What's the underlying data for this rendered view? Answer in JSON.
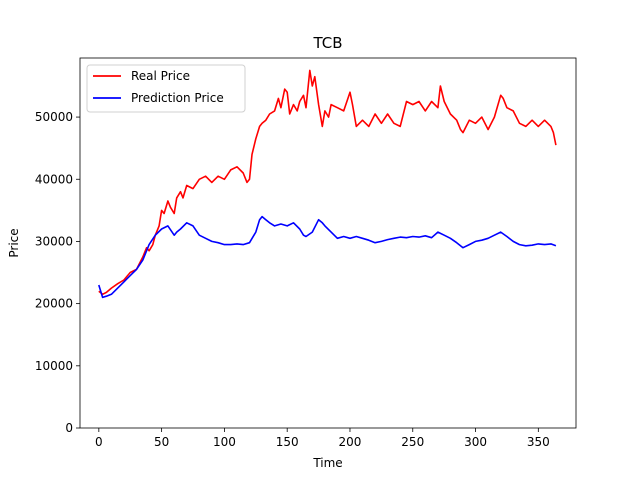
{
  "chart_data": {
    "type": "line",
    "title": "TCB",
    "xlabel": "Time",
    "ylabel": "Price",
    "xlim": [
      -15,
      380
    ],
    "ylim": [
      0,
      59500
    ],
    "xticks": [
      0,
      50,
      100,
      150,
      200,
      250,
      300,
      350
    ],
    "yticks": [
      0,
      10000,
      20000,
      30000,
      40000,
      50000
    ],
    "grid": false,
    "legend": "top-left",
    "series": [
      {
        "name": "Real Price",
        "color": "#ff0000",
        "x": [
          0,
          3,
          6,
          10,
          15,
          20,
          25,
          30,
          35,
          38,
          40,
          43,
          45,
          48,
          50,
          52,
          55,
          57,
          60,
          62,
          65,
          67,
          70,
          75,
          80,
          85,
          90,
          95,
          100,
          105,
          110,
          115,
          118,
          120,
          122,
          125,
          128,
          130,
          133,
          136,
          140,
          143,
          145,
          148,
          150,
          152,
          155,
          158,
          160,
          163,
          165,
          168,
          170,
          172,
          175,
          178,
          180,
          183,
          185,
          190,
          195,
          200,
          202,
          205,
          210,
          215,
          220,
          225,
          230,
          235,
          240,
          245,
          250,
          255,
          260,
          265,
          270,
          272,
          275,
          280,
          285,
          288,
          290,
          295,
          300,
          305,
          310,
          315,
          320,
          322,
          325,
          330,
          335,
          340,
          345,
          350,
          355,
          360,
          362,
          364
        ],
        "y": [
          22000,
          21500,
          21800,
          22500,
          23200,
          23800,
          25000,
          25500,
          27500,
          29000,
          28500,
          29500,
          31000,
          32500,
          35000,
          34500,
          36500,
          35500,
          34500,
          37000,
          38000,
          37000,
          39000,
          38500,
          40000,
          40500,
          39500,
          40500,
          40000,
          41500,
          42000,
          41000,
          39500,
          40000,
          44000,
          46500,
          48500,
          49000,
          49500,
          50500,
          51000,
          53000,
          51500,
          54500,
          54000,
          50500,
          52000,
          51000,
          52500,
          53500,
          51500,
          57500,
          55000,
          56500,
          52000,
          48500,
          51000,
          50000,
          52000,
          51500,
          51000,
          54000,
          52000,
          48500,
          49500,
          48500,
          50500,
          49000,
          50500,
          49000,
          48500,
          52500,
          52000,
          52500,
          51000,
          52500,
          51500,
          55000,
          52500,
          50500,
          49500,
          48000,
          47500,
          49500,
          49000,
          50000,
          48000,
          50000,
          53500,
          53000,
          51500,
          51000,
          49000,
          48500,
          49500,
          48500,
          49500,
          48500,
          47500,
          45500
        ]
      },
      {
        "name": "Prediction Price",
        "color": "#0000ff",
        "x": [
          0,
          3,
          6,
          10,
          15,
          20,
          25,
          30,
          35,
          40,
          45,
          50,
          55,
          60,
          62,
          65,
          70,
          75,
          80,
          85,
          90,
          95,
          100,
          105,
          110,
          115,
          120,
          125,
          128,
          130,
          133,
          136,
          140,
          145,
          150,
          155,
          160,
          163,
          165,
          170,
          175,
          178,
          180,
          185,
          190,
          195,
          200,
          205,
          210,
          215,
          220,
          225,
          230,
          235,
          240,
          245,
          250,
          255,
          260,
          265,
          270,
          275,
          280,
          285,
          290,
          295,
          300,
          305,
          310,
          315,
          320,
          325,
          330,
          335,
          340,
          345,
          350,
          355,
          360,
          364
        ],
        "y": [
          23000,
          21000,
          21200,
          21500,
          22500,
          23500,
          24500,
          25500,
          27000,
          29500,
          31000,
          32000,
          32500,
          31000,
          31500,
          32000,
          33000,
          32500,
          31000,
          30500,
          30000,
          29800,
          29500,
          29500,
          29600,
          29500,
          29800,
          31500,
          33500,
          34000,
          33500,
          33000,
          32500,
          32800,
          32500,
          33000,
          32000,
          31000,
          30800,
          31500,
          33500,
          33000,
          32500,
          31500,
          30500,
          30800,
          30500,
          30800,
          30500,
          30200,
          29800,
          30000,
          30300,
          30500,
          30700,
          30600,
          30800,
          30700,
          30900,
          30600,
          31500,
          31000,
          30500,
          29800,
          29000,
          29500,
          30000,
          30200,
          30500,
          31000,
          31500,
          30800,
          30000,
          29500,
          29300,
          29400,
          29600,
          29500,
          29600,
          29300
        ]
      }
    ]
  }
}
